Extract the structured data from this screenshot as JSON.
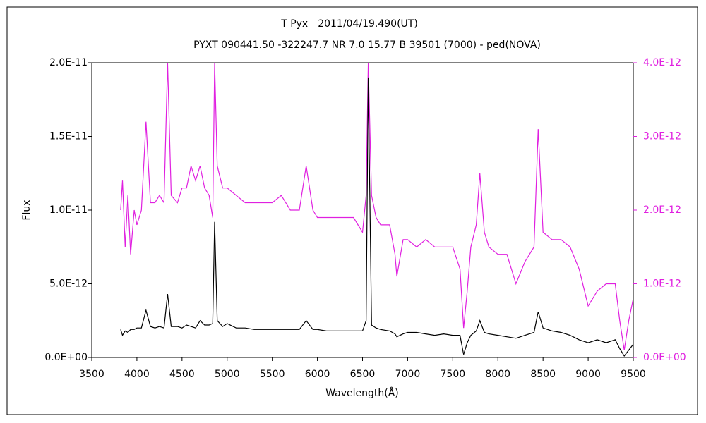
{
  "chart_data": {
    "type": "line",
    "title": "T Pyx　2011/04/19.490(UT)",
    "subtitle": "PYXT 090441.50 -322247.7 NR 7.0 15.77 B 39501 (7000) - ped(NOVA)",
    "xlabel": "Wavelength(Å)",
    "ylabel": "Flux",
    "x": [
      3820,
      3840,
      3870,
      3900,
      3930,
      3970,
      4000,
      4050,
      4101,
      4150,
      4200,
      4250,
      4300,
      4340,
      4380,
      4450,
      4500,
      4550,
      4600,
      4650,
      4700,
      4750,
      4800,
      4840,
      4861,
      4890,
      4950,
      5000,
      5100,
      5200,
      5300,
      5400,
      5500,
      5600,
      5700,
      5800,
      5876,
      5950,
      6000,
      6100,
      6200,
      6300,
      6400,
      6500,
      6540,
      6563,
      6600,
      6650,
      6700,
      6800,
      6860,
      6880,
      6950,
      7000,
      7100,
      7200,
      7300,
      7400,
      7500,
      7580,
      7620,
      7660,
      7700,
      7760,
      7800,
      7850,
      7900,
      8000,
      8100,
      8200,
      8300,
      8400,
      8446,
      8500,
      8600,
      8700,
      8800,
      8900,
      9000,
      9100,
      9200,
      9300,
      9350,
      9400,
      9450,
      9500
    ],
    "series": [
      {
        "name": "Flux",
        "color": "#000000",
        "axis": "y",
        "values": [
          1.9e-12,
          1.5e-12,
          1.8e-12,
          1.7e-12,
          1.9e-12,
          1.9e-12,
          2e-12,
          2e-12,
          3.2e-12,
          2.1e-12,
          2e-12,
          2.1e-12,
          2e-12,
          4.3e-12,
          2.1e-12,
          2.1e-12,
          2e-12,
          2.2e-12,
          2.1e-12,
          2e-12,
          2.5e-12,
          2.2e-12,
          2.2e-12,
          2.3e-12,
          9.2e-12,
          2.5e-12,
          2.1e-12,
          2.3e-12,
          2e-12,
          2e-12,
          1.9e-12,
          1.9e-12,
          1.9e-12,
          1.9e-12,
          1.9e-12,
          1.9e-12,
          2.5e-12,
          1.9e-12,
          1.9e-12,
          1.8e-12,
          1.8e-12,
          1.8e-12,
          1.8e-12,
          1.8e-12,
          2.5e-12,
          1.9e-11,
          2.2e-12,
          2e-12,
          1.9e-12,
          1.8e-12,
          1.6e-12,
          1.4e-12,
          1.6e-12,
          1.7e-12,
          1.7e-12,
          1.6e-12,
          1.5e-12,
          1.6e-12,
          1.5e-12,
          1.5e-12,
          2e-13,
          1e-12,
          1.5e-12,
          1.8e-12,
          2.5e-12,
          1.7e-12,
          1.6e-12,
          1.5e-12,
          1.4e-12,
          1.3e-12,
          1.5e-12,
          1.7e-12,
          3.1e-12,
          2e-12,
          1.8e-12,
          1.7e-12,
          1.5e-12,
          1.2e-12,
          1e-12,
          1.2e-12,
          1e-12,
          1.2e-12,
          6e-13,
          1e-13,
          5e-13,
          9e-13
        ]
      },
      {
        "color": "#e020e0",
        "axis": "y2",
        "values": [
          2e-12,
          2.4e-12,
          1.5e-12,
          2.2e-12,
          1.4e-12,
          2e-12,
          1.8e-12,
          2e-12,
          3.2e-12,
          2.1e-12,
          2.1e-12,
          2.2e-12,
          2.1e-12,
          4e-12,
          2.2e-12,
          2.1e-12,
          2.3e-12,
          2.3e-12,
          2.6e-12,
          2.4e-12,
          2.6e-12,
          2.3e-12,
          2.2e-12,
          1.9e-12,
          4e-12,
          2.6e-12,
          2.3e-12,
          2.3e-12,
          2.2e-12,
          2.1e-12,
          2.1e-12,
          2.1e-12,
          2.1e-12,
          2.2e-12,
          2e-12,
          2e-12,
          2.6e-12,
          2e-12,
          1.9e-12,
          1.9e-12,
          1.9e-12,
          1.9e-12,
          1.9e-12,
          1.7e-12,
          2.2e-12,
          4e-12,
          2.2e-12,
          1.9e-12,
          1.8e-12,
          1.8e-12,
          1.4e-12,
          1.1e-12,
          1.6e-12,
          1.6e-12,
          1.5e-12,
          1.6e-12,
          1.5e-12,
          1.5e-12,
          1.5e-12,
          1.2e-12,
          4e-13,
          9e-13,
          1.5e-12,
          1.8e-12,
          2.5e-12,
          1.7e-12,
          1.5e-12,
          1.4e-12,
          1.4e-12,
          1e-12,
          1.3e-12,
          1.5e-12,
          3.1e-12,
          1.7e-12,
          1.6e-12,
          1.6e-12,
          1.5e-12,
          1.2e-12,
          7e-13,
          9e-13,
          1e-12,
          1e-12,
          5e-13,
          1e-13,
          5e-13,
          8e-13
        ]
      }
    ],
    "xlim": [
      3500,
      9500
    ],
    "xticks": [
      3500,
      4000,
      4500,
      5000,
      5500,
      6000,
      6500,
      7000,
      7500,
      8000,
      8500,
      9000,
      9500
    ],
    "ylim": [
      0,
      2e-11
    ],
    "yticks": [
      {
        "value": 0,
        "label": "0.0E+00"
      },
      {
        "value": 5e-12,
        "label": "5.0E-12"
      },
      {
        "value": 1e-11,
        "label": "1.0E-11"
      },
      {
        "value": 1.5e-11,
        "label": "1.5E-11"
      },
      {
        "value": 2e-11,
        "label": "2.0E-11"
      }
    ],
    "y2lim": [
      0,
      4e-12
    ],
    "y2ticks": [
      {
        "value": 0,
        "label": "0.0E+00"
      },
      {
        "value": 1e-12,
        "label": "1.0E-12"
      },
      {
        "value": 2e-12,
        "label": "2.0E-12"
      },
      {
        "value": 3e-12,
        "label": "3.0E-12"
      },
      {
        "value": 4e-12,
        "label": "4.0E-12"
      }
    ],
    "y2color": "#e020e0",
    "grid": false
  }
}
